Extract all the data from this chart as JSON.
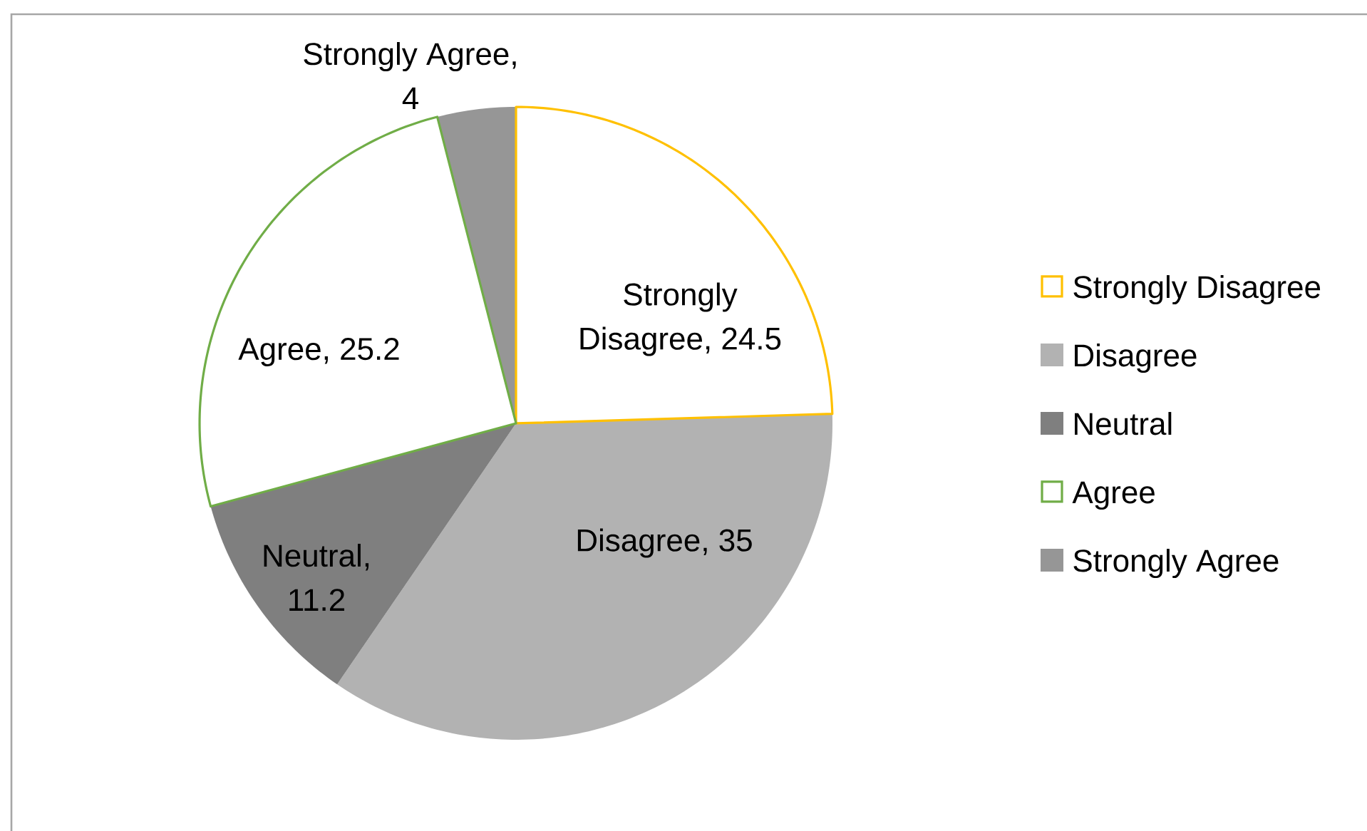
{
  "chart_data": {
    "type": "pie",
    "categories": [
      "Strongly Disagree",
      "Disagree",
      "Neutral",
      "Agree",
      "Strongly Agree"
    ],
    "values": [
      24.5,
      35,
      11.2,
      25.2,
      4
    ],
    "colors": [
      "#ffc000",
      "#b2b2b2",
      "#7f7f7f",
      "#70ad47",
      "#969696"
    ],
    "value_labels": [
      "Strongly Disagree, 24.5",
      "Disagree, 35",
      "Neutral, 11.2",
      "Agree, 25.2",
      "Strongly Agree, 4"
    ],
    "legend": "right"
  }
}
